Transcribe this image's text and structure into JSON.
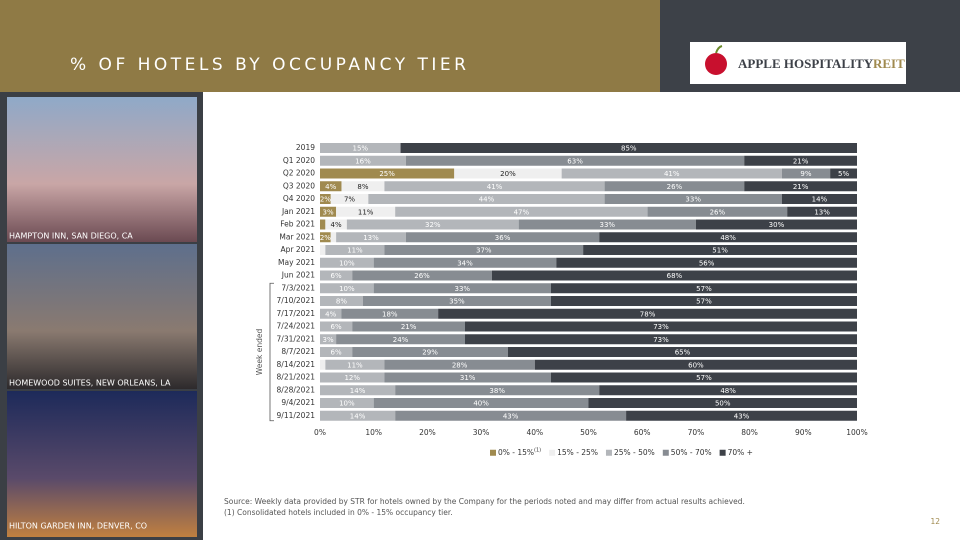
{
  "header": {
    "title": "% OF HOTELS BY OCCUPANCY TIER",
    "logo_name": "APPLE HOSPITALITY",
    "logo_suffix": "REIT"
  },
  "photos": [
    {
      "caption": "HAMPTON INN, SAN DIEGO, CA"
    },
    {
      "caption": "HOMEWOOD SUITES, NEW ORLEANS, LA"
    },
    {
      "caption": "HILTON GARDEN INN, DENVER, CO"
    }
  ],
  "chart_data": {
    "type": "bar",
    "orientation": "horizontal",
    "stacked": true,
    "y_label": "Week ended",
    "categories": [
      "2019",
      "Q1 2020",
      "Q2 2020",
      "Q3 2020",
      "Q4 2020",
      "Jan 2021",
      "Feb 2021",
      "Mar 2021",
      "Apr 2021",
      "May 2021",
      "Jun 2021",
      "7/3/2021",
      "7/10/2021",
      "7/17/2021",
      "7/24/2021",
      "7/31/2021",
      "8/7/2021",
      "8/14/2021",
      "8/21/2021",
      "8/28/2021",
      "9/4/2021",
      "9/11/2021"
    ],
    "series": [
      {
        "name": "0% - 15%",
        "footnote_marker": "(1)",
        "color": "#a08a4f",
        "values": [
          0,
          0,
          25,
          4,
          2,
          3,
          1,
          2,
          0,
          0,
          0,
          0,
          0,
          0,
          0,
          0,
          0,
          0,
          0,
          0,
          0,
          0
        ],
        "value_labels": [
          null,
          null,
          "25%",
          "4%",
          "2%",
          "3%",
          null,
          "2%",
          null,
          null,
          null,
          null,
          null,
          null,
          null,
          null,
          null,
          null,
          null,
          null,
          null,
          null
        ]
      },
      {
        "name": "15% - 25%",
        "color": "#efefef",
        "values": [
          0,
          0,
          20,
          8,
          7,
          11,
          4,
          1,
          1,
          0,
          0,
          0,
          0,
          0,
          0,
          0,
          0,
          1,
          0,
          0,
          0,
          0
        ],
        "value_labels": [
          null,
          null,
          "20%",
          "8%",
          "7%",
          "11%",
          "4%",
          null,
          null,
          null,
          null,
          null,
          null,
          null,
          null,
          null,
          null,
          null,
          null,
          null,
          null,
          null
        ]
      },
      {
        "name": "25% - 50%",
        "color": "#b3b6ba",
        "values": [
          15,
          16,
          41,
          41,
          44,
          47,
          32,
          13,
          11,
          10,
          6,
          10,
          8,
          4,
          6,
          3,
          6,
          11,
          12,
          14,
          10,
          14
        ],
        "value_labels": [
          "15%",
          "16%",
          "41%",
          "41%",
          "44%",
          "47%",
          "32%",
          "13%",
          "11%",
          "10%",
          "6%",
          "10%",
          "8%",
          "4%",
          "6%",
          "3%",
          "6%",
          "11%",
          "12%",
          "14%",
          "10%",
          "14%"
        ]
      },
      {
        "name": "50% - 70%",
        "color": "#878c92",
        "values": [
          0,
          63,
          9,
          26,
          33,
          26,
          33,
          36,
          37,
          34,
          26,
          33,
          35,
          18,
          21,
          24,
          29,
          28,
          31,
          38,
          40,
          43
        ],
        "value_labels": [
          null,
          "63%",
          "9%",
          "26%",
          "33%",
          "26%",
          "33%",
          "36%",
          "37%",
          "34%",
          "26%",
          "33%",
          "35%",
          "18%",
          "21%",
          "24%",
          "29%",
          "28%",
          "31%",
          "38%",
          "40%",
          "43%"
        ]
      },
      {
        "name": "70% +",
        "color": "#3d4148",
        "values": [
          85,
          21,
          5,
          21,
          14,
          13,
          30,
          48,
          51,
          56,
          68,
          57,
          57,
          78,
          73,
          73,
          65,
          60,
          57,
          48,
          50,
          43
        ],
        "value_labels": [
          "85%",
          "21%",
          "5%",
          "21%",
          "14%",
          "13%",
          "30%",
          "48%",
          "51%",
          "56%",
          "68%",
          "57%",
          "57%",
          "78%",
          "73%",
          "73%",
          "65%",
          "60%",
          "57%",
          "48%",
          "50%",
          "43%"
        ]
      }
    ],
    "xlim": [
      0,
      100
    ],
    "xticks": [
      {
        "value": 0,
        "label": "0%"
      },
      {
        "value": 10,
        "label": "10%"
      },
      {
        "value": 20,
        "label": "20%"
      },
      {
        "value": 30,
        "label": "30%"
      },
      {
        "value": 40,
        "label": "40%"
      },
      {
        "value": 50,
        "label": "50%"
      },
      {
        "value": 60,
        "label": "60%"
      },
      {
        "value": 70,
        "label": "70%"
      },
      {
        "value": 80,
        "label": "80%"
      },
      {
        "value": 90,
        "label": "90%"
      },
      {
        "value": 100,
        "label": "100%"
      }
    ]
  },
  "footer": {
    "source": "Source:  Weekly data provided by STR for hotels owned by the Company for the periods noted and may differ from actual results achieved.",
    "note": "(1)    Consolidated hotels included in 0% - 15% occupancy tier.",
    "page": "12"
  }
}
